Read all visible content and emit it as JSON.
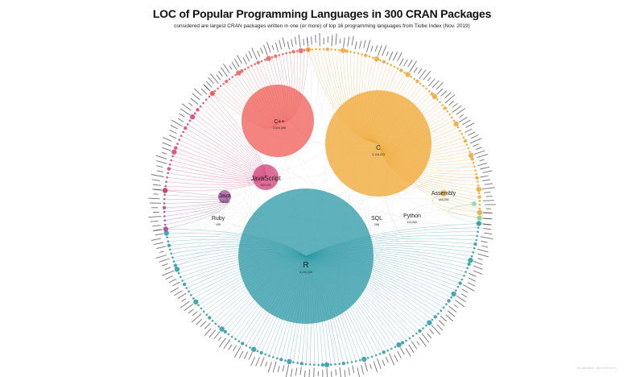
{
  "title": "LOC of Popular Programming Languages in 300 CRAN Packages",
  "subtitle": "considered are largest CRAN packages written in one (or more) of top 16 programming languages from Tiobe Index (Nov. 2019)",
  "credit": "Visualization: @CedScherer",
  "colors": {
    "R": "#2a97a5",
    "C": "#efa52f",
    "Cpp": "#ef5b54",
    "JavaScript": "#d23d74",
    "Java": "#9b4a98",
    "Assembly": "#efa52f",
    "Python": "#82cf8e",
    "link": "#e6e6e6",
    "label": "#222222"
  },
  "languages": [
    {
      "id": "R",
      "name": "R",
      "loc": "4,131,329",
      "color_key": "R"
    },
    {
      "id": "C",
      "name": "C",
      "loc": "3,116,223",
      "color_key": "C"
    },
    {
      "id": "Cpp",
      "name": "C++",
      "loc": "2,509,355",
      "color_key": "Cpp"
    },
    {
      "id": "JavaScript",
      "name": "JavaScript",
      "loc": "529,700",
      "color_key": "JavaScript"
    },
    {
      "id": "Java",
      "name": "Java",
      "loc": "258,184",
      "color_key": "Java"
    },
    {
      "id": "Assembly",
      "name": "Assembly",
      "loc": "148,292",
      "color_key": "Assembly"
    },
    {
      "id": "Python",
      "name": "Python",
      "loc": "110,640",
      "color_key": "Python"
    },
    {
      "id": "SQL",
      "name": "SQL",
      "loc": "288",
      "color_key": "R"
    },
    {
      "id": "Ruby",
      "name": "Ruby",
      "loc": "195",
      "color_key": "R"
    }
  ]
}
